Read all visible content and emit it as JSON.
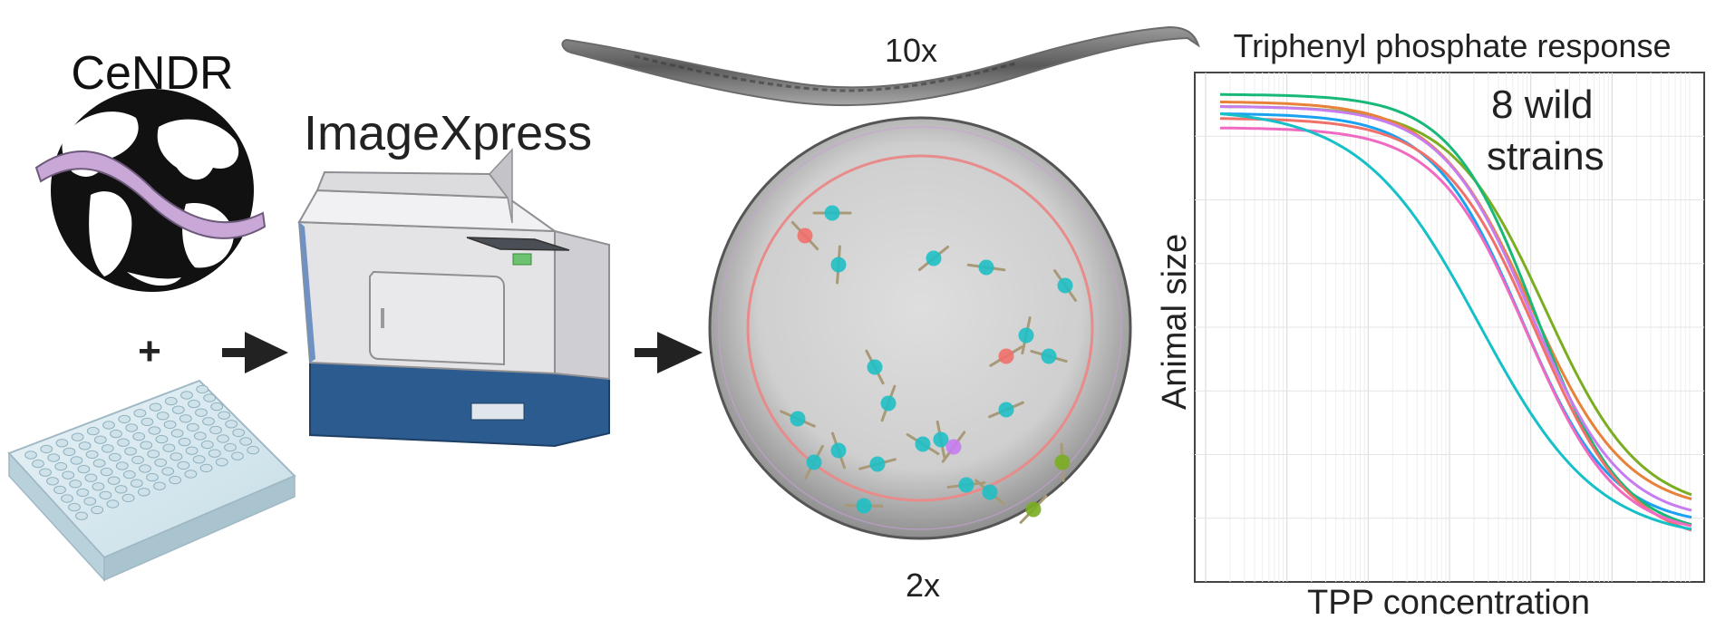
{
  "logo": {
    "text": "CeNDR"
  },
  "plus": "+",
  "instrument": {
    "title": "ImageXpress"
  },
  "worm_label": "10x",
  "well_label": "2x",
  "chart": {
    "title": "Triphenyl phosphate response",
    "annotation_line1": "8 wild",
    "annotation_line2": "strains",
    "xlabel": "TPP concentration",
    "ylabel": "Animal size"
  },
  "colors": {
    "cyan_dot": "#1fbfc4",
    "red_dot": "#f0706a",
    "purple_dot": "#c77cf0",
    "green_dot": "#7aad21",
    "instrument_blue": "#2b5b8f"
  },
  "chart_data": {
    "type": "line",
    "title": "Triphenyl phosphate response",
    "xlabel": "TPP concentration",
    "ylabel": "Animal size",
    "grid": true,
    "x_scale": "log",
    "series": [
      {
        "color": "#1aa1f0",
        "top": 0.96,
        "bottom": 0.09,
        "mid": 0.64,
        "steep": 10.5
      },
      {
        "color": "#7aad21",
        "top": 0.975,
        "bottom": 0.12,
        "mid": 0.69,
        "steep": 10.0
      },
      {
        "color": "#e8823a",
        "top": 0.985,
        "bottom": 0.12,
        "mid": 0.66,
        "steep": 10.0
      },
      {
        "color": "#18b878",
        "top": 1.0,
        "bottom": 0.07,
        "mid": 0.67,
        "steep": 11.0
      },
      {
        "color": "#c77cf0",
        "top": 0.975,
        "bottom": 0.1,
        "mid": 0.66,
        "steep": 10.5
      },
      {
        "color": "#f0706a",
        "top": 0.95,
        "bottom": 0.05,
        "mid": 0.67,
        "steep": 10.0
      },
      {
        "color": "#ef6ac0",
        "top": 0.93,
        "bottom": 0.07,
        "mid": 0.65,
        "steep": 10.5
      },
      {
        "color": "#16c0c8",
        "top": 0.97,
        "bottom": 0.06,
        "mid": 0.55,
        "steep": 8.0
      }
    ]
  }
}
